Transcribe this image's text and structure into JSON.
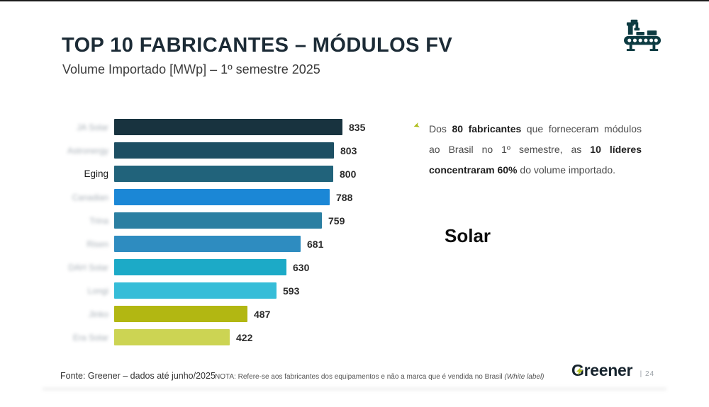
{
  "page": {
    "title": "TOP 10 FABRICANTES – MÓDULOS FV",
    "subtitle": "Volume Importado [MWp] – 1º semestre 2025"
  },
  "chart_data": {
    "type": "bar",
    "orientation": "horizontal",
    "title": "TOP 10 FABRICANTES – MÓDULOS FV",
    "subtitle": "Volume Importado [MWp] – 1º semestre 2025",
    "unit": "MWp",
    "xlim": [
      0,
      870
    ],
    "grid": false,
    "legend": false,
    "value_label_position": "end-of-bar",
    "categories": [
      "JA Solar",
      "Astronergy",
      "Eging",
      "Canadian",
      "Trina",
      "Risen",
      "DAH Solar",
      "Longi",
      "Jinko",
      "Era Solar"
    ],
    "values": [
      835,
      803,
      800,
      788,
      759,
      681,
      630,
      593,
      487,
      422
    ],
    "label_blurred": [
      true,
      true,
      false,
      true,
      true,
      true,
      true,
      true,
      true,
      true
    ],
    "bar_colors": [
      "#18333f",
      "#1d4f63",
      "#21637b",
      "#1b87d6",
      "#2b7fa2",
      "#2e8cc0",
      "#1caac7",
      "#36bdd8",
      "#b2b712",
      "#ccd453"
    ]
  },
  "annotation": {
    "bullet_icon_name": "arrow-bullet-icon",
    "bullet_color": "#aebd1c",
    "segments": [
      {
        "text": "Dos ",
        "bold": false
      },
      {
        "text": "80 fabricantes",
        "bold": true
      },
      {
        "text": " que forneceram módulos ao Brasil no 1º semestre, as ",
        "bold": false
      },
      {
        "text": "10 líderes concentraram 60%",
        "bold": true
      },
      {
        "text": " do volume importado.",
        "bold": false
      }
    ],
    "overlay_text": "Solar"
  },
  "footer": {
    "source": "Fonte: Greener – dados até junho/2025",
    "note_prefix": "NOTA: Refere-se aos fabricantes dos equipamentos e não a marca que é vendida no Brasil ",
    "note_italic": "(White label)",
    "brand": "Greener",
    "page_number": "| 24"
  },
  "colors": {
    "title": "#1c2b36",
    "icon": "#0d3b42",
    "accent_green": "#b5c31c"
  }
}
